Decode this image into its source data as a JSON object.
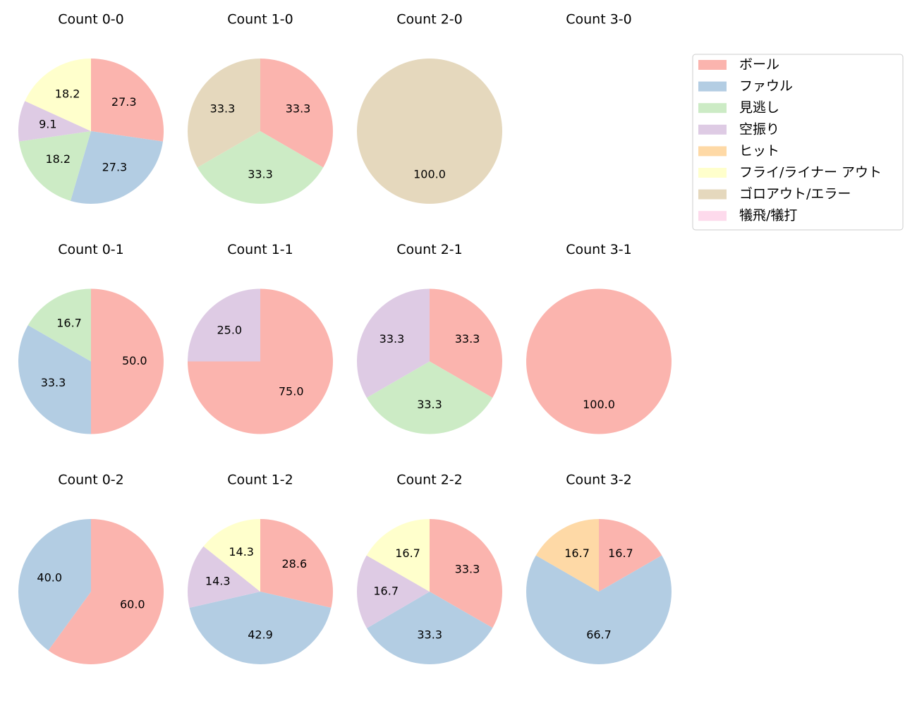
{
  "legend": {
    "entries": [
      {
        "name": "ボール",
        "color": "#fbb4ae"
      },
      {
        "name": "ファウル",
        "color": "#b3cde3"
      },
      {
        "name": "見逃し",
        "color": "#ccebc5"
      },
      {
        "name": "空振り",
        "color": "#decbe4"
      },
      {
        "name": "ヒット",
        "color": "#fed9a6"
      },
      {
        "name": "フライ/ライナー アウト",
        "color": "#ffffcc"
      },
      {
        "name": "ゴロアウト/エラー",
        "color": "#e5d8bd"
      },
      {
        "name": "犠飛/犠打",
        "color": "#fddaec"
      }
    ]
  },
  "chart_data": [
    {
      "type": "pie",
      "title": "Count 0-0",
      "values": [
        27.3,
        27.3,
        18.2,
        9.1,
        0,
        18.2,
        0,
        0
      ],
      "value_labels": [
        "27.3",
        "27.3",
        "18.2",
        "9.1",
        null,
        "18.2",
        null,
        null
      ]
    },
    {
      "type": "pie",
      "title": "Count 1-0",
      "values": [
        33.3,
        0,
        33.3,
        0,
        0,
        0,
        33.3,
        0
      ],
      "value_labels": [
        "33.3",
        null,
        "33.3",
        null,
        null,
        null,
        "33.3",
        null
      ]
    },
    {
      "type": "pie",
      "title": "Count 2-0",
      "values": [
        0,
        0,
        0,
        0,
        0,
        0,
        100,
        0
      ],
      "value_labels": [
        null,
        null,
        null,
        null,
        null,
        null,
        "100.0",
        null
      ]
    },
    {
      "type": "pie",
      "title": "Count 3-0"
    },
    {
      "type": "pie",
      "title": "Count 0-1",
      "values": [
        50,
        33.3,
        16.7,
        0,
        0,
        0,
        0,
        0
      ],
      "value_labels": [
        "50.0",
        "33.3",
        "16.7",
        null,
        null,
        null,
        null,
        null
      ]
    },
    {
      "type": "pie",
      "title": "Count 1-1",
      "values": [
        75,
        0,
        0,
        25,
        0,
        0,
        0,
        0
      ],
      "value_labels": [
        "75.0",
        null,
        null,
        "25.0",
        null,
        null,
        null,
        null
      ]
    },
    {
      "type": "pie",
      "title": "Count 2-1",
      "values": [
        33.3,
        0,
        33.3,
        33.3,
        0,
        0,
        0,
        0
      ],
      "value_labels": [
        "33.3",
        null,
        "33.3",
        "33.3",
        null,
        null,
        null,
        null
      ]
    },
    {
      "type": "pie",
      "title": "Count 3-1",
      "values": [
        100,
        0,
        0,
        0,
        0,
        0,
        0,
        0
      ],
      "value_labels": [
        "100.0",
        null,
        null,
        null,
        null,
        null,
        null,
        null
      ]
    },
    {
      "type": "pie",
      "title": "Count 0-2",
      "values": [
        60,
        40,
        0,
        0,
        0,
        0,
        0,
        0
      ],
      "value_labels": [
        "60.0",
        "40.0",
        null,
        null,
        null,
        null,
        null,
        null
      ]
    },
    {
      "type": "pie",
      "title": "Count 1-2",
      "values": [
        28.6,
        42.9,
        0,
        14.3,
        0,
        14.3,
        0,
        0
      ],
      "value_labels": [
        "28.6",
        "42.9",
        null,
        "14.3",
        null,
        "14.3",
        null,
        null
      ]
    },
    {
      "type": "pie",
      "title": "Count 2-2",
      "values": [
        33.3,
        33.3,
        0,
        16.7,
        0,
        16.7,
        0,
        0
      ],
      "value_labels": [
        "33.3",
        "33.3",
        null,
        "16.7",
        null,
        "16.7",
        null,
        null
      ]
    },
    {
      "type": "pie",
      "title": "Count 3-2",
      "values": [
        16.7,
        66.7,
        0,
        0,
        16.7,
        0,
        0,
        0
      ],
      "value_labels": [
        "16.7",
        "66.7",
        null,
        null,
        "16.7",
        null,
        null,
        null
      ]
    }
  ]
}
